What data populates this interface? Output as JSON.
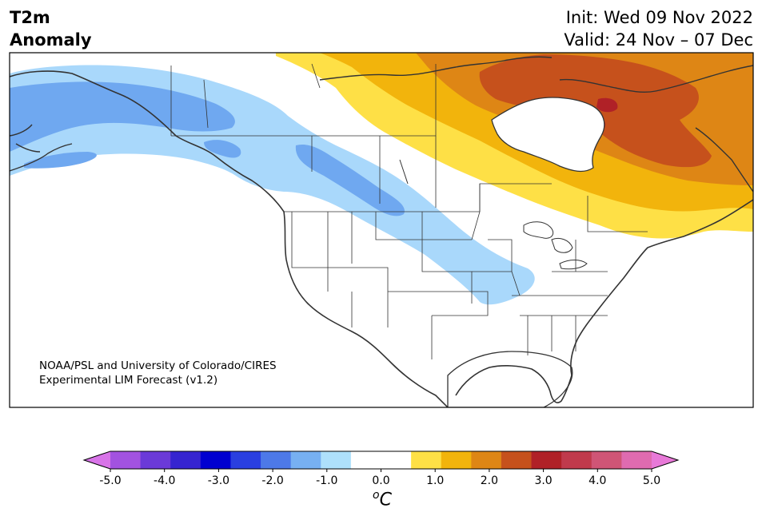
{
  "header": {
    "title_line1": "T2m",
    "title_line2": "Anomaly",
    "init_line": "Init: Wed 09 Nov 2022",
    "valid_line": "Valid: 24 Nov – 07 Dec"
  },
  "credit": {
    "line1": "NOAA/PSL and University of Colorado/CIRES",
    "line2": "Experimental LIM Forecast (v1.2)"
  },
  "map": {
    "variable": "2-meter temperature anomaly",
    "region": "North America",
    "land_color": "#ffffff",
    "border_color": "#333333",
    "anomaly_fields": [
      {
        "level": "cold (-2.0 to -1.5)",
        "color": "#6fa8f0",
        "regions": [
          "Alaska interior",
          "Northern Rockies strip"
        ]
      },
      {
        "level": "cool (-1.5 to -0.5)",
        "color": "#a9d8fb",
        "regions": [
          "Alaska",
          "Yukon",
          "Northern Plains",
          "Upper Midwest"
        ]
      },
      {
        "level": "warm (0.5 to 1.0)",
        "color": "#fee046",
        "regions": [
          "Eastern Canada",
          "Great Lakes north"
        ]
      },
      {
        "level": "warm (1.0 to 1.5)",
        "color": "#f2b40c",
        "regions": [
          "Hudson Bay",
          "Quebec"
        ]
      },
      {
        "level": "warm (1.5 to 2.0)",
        "color": "#de8615",
        "regions": [
          "Nunavut",
          "Labrador"
        ]
      },
      {
        "level": "hot (2.0 to 2.5)",
        "color": "#c6511c",
        "regions": [
          "Baffin Island",
          "Northern Quebec"
        ]
      },
      {
        "level": "hot (2.5 to 3.0)",
        "color": "#b02127",
        "regions": [
          "Baffin interior"
        ]
      }
    ]
  },
  "colorbar": {
    "unit_symbol": "C",
    "unit_prefix": "o",
    "min": -5.0,
    "max": 5.0,
    "step": 0.5,
    "tick_labels": [
      "-5.0",
      "-4.0",
      "-3.0",
      "-2.0",
      "-1.0",
      "0.0",
      "1.0",
      "2.0",
      "3.0",
      "4.0",
      "5.0"
    ],
    "colors": [
      "#d874e8",
      "#a252e0",
      "#6b3ad8",
      "#3624d0",
      "#0000d0",
      "#2a3fe0",
      "#4d79e8",
      "#77b0f2",
      "#aee0fb",
      "#ffffff",
      "#ffffff",
      "#fee046",
      "#f2b40c",
      "#de8615",
      "#c6511c",
      "#b02127",
      "#c03a4c",
      "#cf5576",
      "#df6bb0",
      "#e879d8"
    ]
  }
}
